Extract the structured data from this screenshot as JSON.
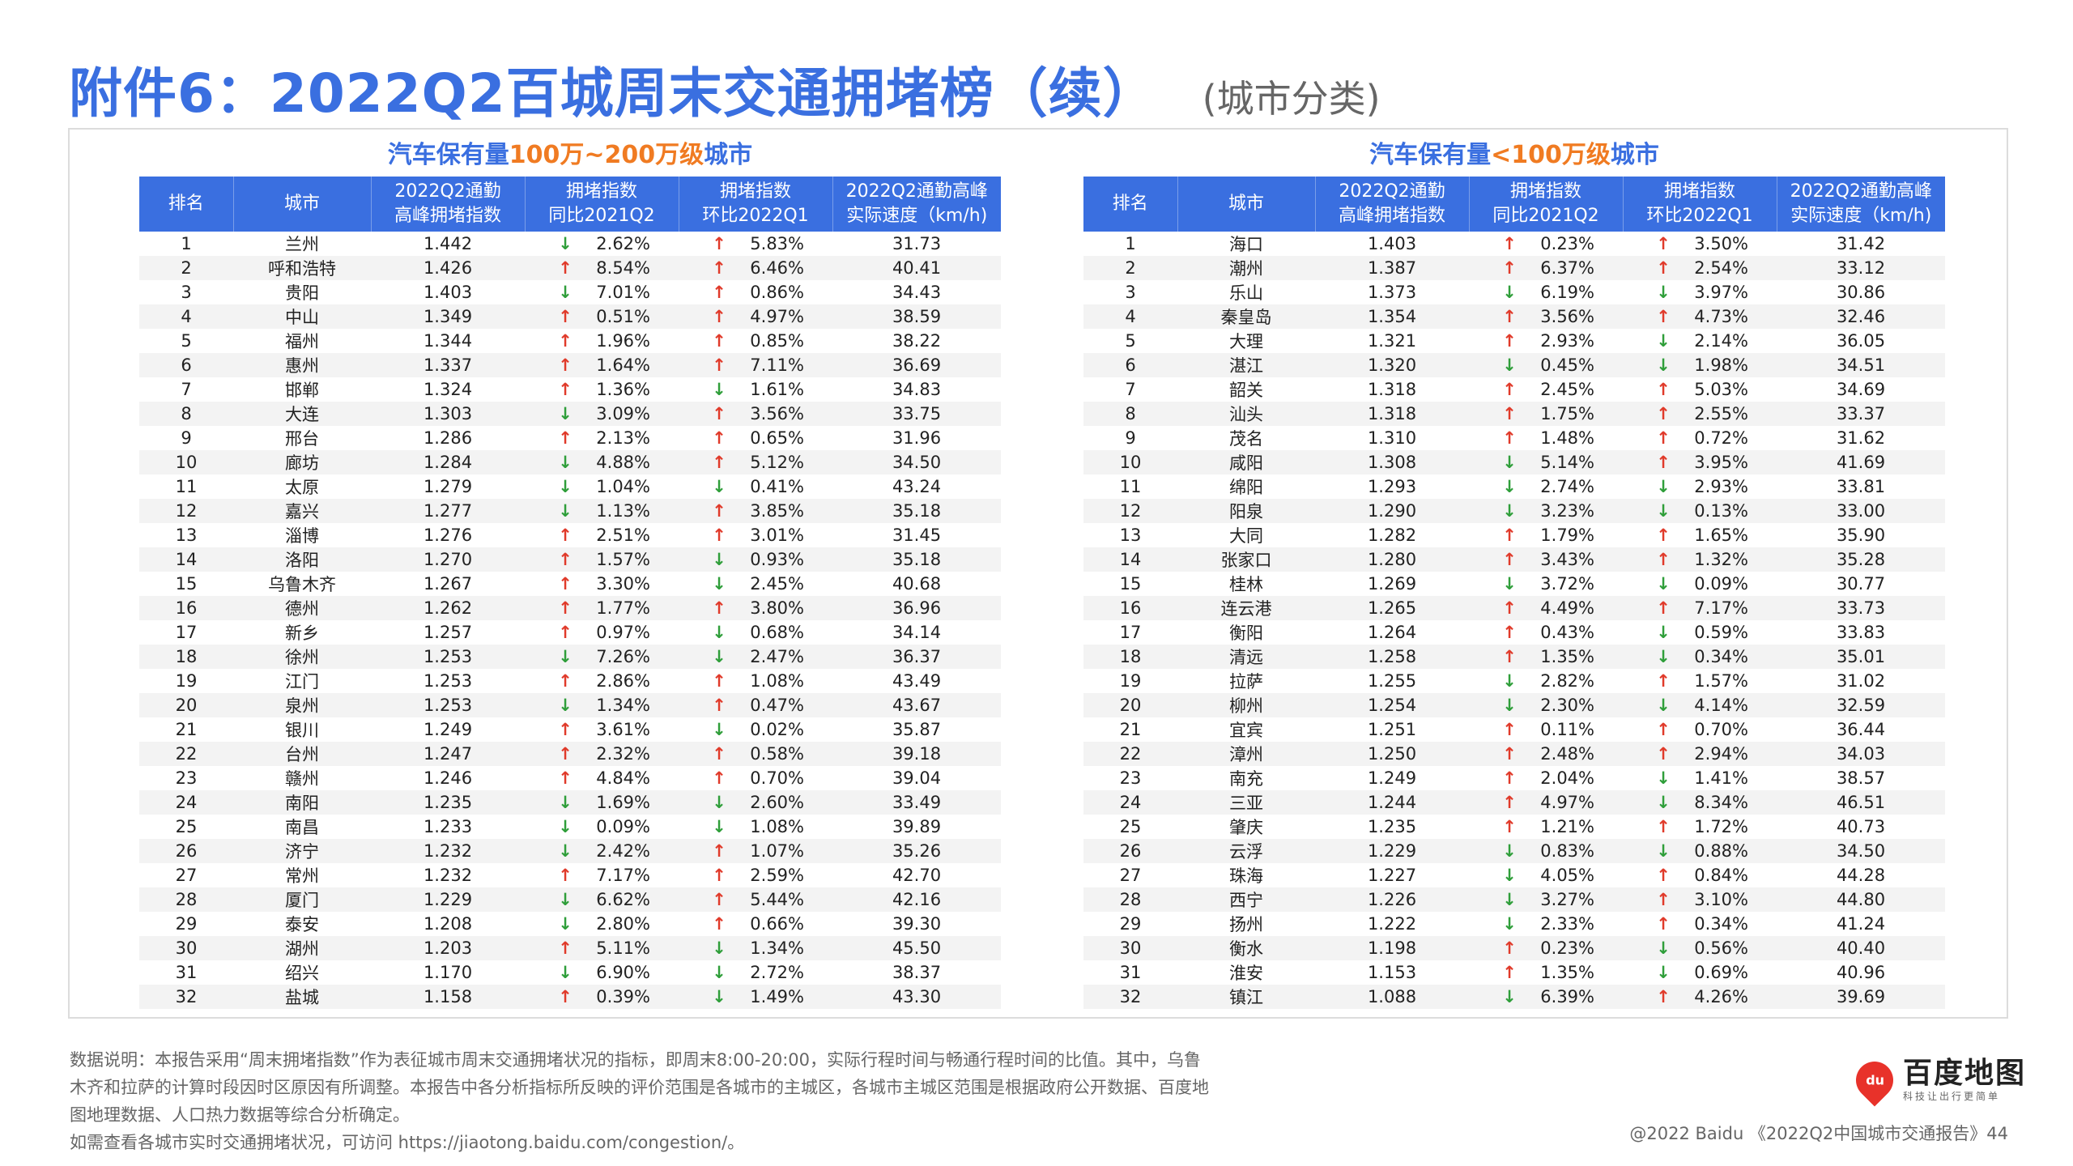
{
  "title": {
    "main": "附件6：2022Q2百城周末交通拥堵榜（续）",
    "sub": "(城市分类)"
  },
  "left": {
    "title_pre": "汽车保有量",
    "title_hl": "100万~200万级",
    "title_post": "城市",
    "headers": [
      "排名",
      "城市",
      "2022Q2通勤\n高峰拥堵指数",
      "拥堵指数\n同比2021Q2",
      "拥堵指数\n环比2022Q1",
      "2022Q2通勤高峰\n实际速度（km/h)"
    ],
    "rows": [
      [
        "1",
        "兰州",
        "1.442",
        "down",
        "2.62%",
        "up",
        "5.83%",
        "31.73"
      ],
      [
        "2",
        "呼和浩特",
        "1.426",
        "up",
        "8.54%",
        "up",
        "6.46%",
        "40.41"
      ],
      [
        "3",
        "贵阳",
        "1.403",
        "down",
        "7.01%",
        "up",
        "0.86%",
        "34.43"
      ],
      [
        "4",
        "中山",
        "1.349",
        "up",
        "0.51%",
        "up",
        "4.97%",
        "38.59"
      ],
      [
        "5",
        "福州",
        "1.344",
        "up",
        "1.96%",
        "up",
        "0.85%",
        "38.22"
      ],
      [
        "6",
        "惠州",
        "1.337",
        "up",
        "1.64%",
        "up",
        "7.11%",
        "36.69"
      ],
      [
        "7",
        "邯郸",
        "1.324",
        "up",
        "1.36%",
        "down",
        "1.61%",
        "34.83"
      ],
      [
        "8",
        "大连",
        "1.303",
        "down",
        "3.09%",
        "up",
        "3.56%",
        "33.75"
      ],
      [
        "9",
        "邢台",
        "1.286",
        "up",
        "2.13%",
        "up",
        "0.65%",
        "31.96"
      ],
      [
        "10",
        "廊坊",
        "1.284",
        "down",
        "4.88%",
        "up",
        "5.12%",
        "34.50"
      ],
      [
        "11",
        "太原",
        "1.279",
        "down",
        "1.04%",
        "down",
        "0.41%",
        "43.24"
      ],
      [
        "12",
        "嘉兴",
        "1.277",
        "down",
        "1.13%",
        "up",
        "3.85%",
        "35.18"
      ],
      [
        "13",
        "淄博",
        "1.276",
        "up",
        "2.51%",
        "up",
        "3.01%",
        "31.45"
      ],
      [
        "14",
        "洛阳",
        "1.270",
        "up",
        "1.57%",
        "down",
        "0.93%",
        "35.18"
      ],
      [
        "15",
        "乌鲁木齐",
        "1.267",
        "up",
        "3.30%",
        "down",
        "2.45%",
        "40.68"
      ],
      [
        "16",
        "德州",
        "1.262",
        "up",
        "1.77%",
        "up",
        "3.80%",
        "36.96"
      ],
      [
        "17",
        "新乡",
        "1.257",
        "up",
        "0.97%",
        "down",
        "0.68%",
        "34.14"
      ],
      [
        "18",
        "徐州",
        "1.253",
        "down",
        "7.26%",
        "down",
        "2.47%",
        "36.37"
      ],
      [
        "19",
        "江门",
        "1.253",
        "up",
        "2.86%",
        "up",
        "1.08%",
        "43.49"
      ],
      [
        "20",
        "泉州",
        "1.253",
        "down",
        "1.34%",
        "up",
        "0.47%",
        "43.67"
      ],
      [
        "21",
        "银川",
        "1.249",
        "up",
        "3.61%",
        "down",
        "0.02%",
        "35.87"
      ],
      [
        "22",
        "台州",
        "1.247",
        "up",
        "2.32%",
        "up",
        "0.58%",
        "39.18"
      ],
      [
        "23",
        "赣州",
        "1.246",
        "up",
        "4.84%",
        "up",
        "0.70%",
        "39.04"
      ],
      [
        "24",
        "南阳",
        "1.235",
        "down",
        "1.69%",
        "down",
        "2.60%",
        "33.49"
      ],
      [
        "25",
        "南昌",
        "1.233",
        "down",
        "0.09%",
        "down",
        "1.08%",
        "39.89"
      ],
      [
        "26",
        "济宁",
        "1.232",
        "down",
        "2.42%",
        "up",
        "1.07%",
        "35.26"
      ],
      [
        "27",
        "常州",
        "1.232",
        "up",
        "7.17%",
        "up",
        "2.59%",
        "42.70"
      ],
      [
        "28",
        "厦门",
        "1.229",
        "down",
        "6.62%",
        "up",
        "5.44%",
        "42.16"
      ],
      [
        "29",
        "泰安",
        "1.208",
        "down",
        "2.80%",
        "up",
        "0.66%",
        "39.30"
      ],
      [
        "30",
        "湖州",
        "1.203",
        "up",
        "5.11%",
        "down",
        "1.34%",
        "45.50"
      ],
      [
        "31",
        "绍兴",
        "1.170",
        "down",
        "6.90%",
        "down",
        "2.72%",
        "38.37"
      ],
      [
        "32",
        "盐城",
        "1.158",
        "up",
        "0.39%",
        "down",
        "1.49%",
        "43.30"
      ]
    ]
  },
  "right": {
    "title_pre": "汽车保有量",
    "title_hl": "<100万级",
    "title_post": "城市",
    "headers": [
      "排名",
      "城市",
      "2022Q2通勤\n高峰拥堵指数",
      "拥堵指数\n同比2021Q2",
      "拥堵指数\n环比2022Q1",
      "2022Q2通勤高峰\n实际速度（km/h)"
    ],
    "rows": [
      [
        "1",
        "海口",
        "1.403",
        "up",
        "0.23%",
        "up",
        "3.50%",
        "31.42"
      ],
      [
        "2",
        "潮州",
        "1.387",
        "up",
        "6.37%",
        "up",
        "2.54%",
        "33.12"
      ],
      [
        "3",
        "乐山",
        "1.373",
        "down",
        "6.19%",
        "down",
        "3.97%",
        "30.86"
      ],
      [
        "4",
        "秦皇岛",
        "1.354",
        "up",
        "3.56%",
        "up",
        "4.73%",
        "32.46"
      ],
      [
        "5",
        "大理",
        "1.321",
        "up",
        "2.93%",
        "down",
        "2.14%",
        "36.05"
      ],
      [
        "6",
        "湛江",
        "1.320",
        "down",
        "0.45%",
        "down",
        "1.98%",
        "34.51"
      ],
      [
        "7",
        "韶关",
        "1.318",
        "up",
        "2.45%",
        "up",
        "5.03%",
        "34.69"
      ],
      [
        "8",
        "汕头",
        "1.318",
        "up",
        "1.75%",
        "up",
        "2.55%",
        "33.37"
      ],
      [
        "9",
        "茂名",
        "1.310",
        "up",
        "1.48%",
        "up",
        "0.72%",
        "31.62"
      ],
      [
        "10",
        "咸阳",
        "1.308",
        "down",
        "5.14%",
        "up",
        "3.95%",
        "41.69"
      ],
      [
        "11",
        "绵阳",
        "1.293",
        "down",
        "2.74%",
        "down",
        "2.93%",
        "33.81"
      ],
      [
        "12",
        "阳泉",
        "1.290",
        "down",
        "3.23%",
        "down",
        "0.13%",
        "33.00"
      ],
      [
        "13",
        "大同",
        "1.282",
        "up",
        "1.79%",
        "up",
        "1.65%",
        "35.90"
      ],
      [
        "14",
        "张家口",
        "1.280",
        "up",
        "3.43%",
        "up",
        "1.32%",
        "35.28"
      ],
      [
        "15",
        "桂林",
        "1.269",
        "down",
        "3.72%",
        "down",
        "0.09%",
        "30.77"
      ],
      [
        "16",
        "连云港",
        "1.265",
        "up",
        "4.49%",
        "up",
        "7.17%",
        "33.73"
      ],
      [
        "17",
        "衡阳",
        "1.264",
        "up",
        "0.43%",
        "down",
        "0.59%",
        "33.83"
      ],
      [
        "18",
        "清远",
        "1.258",
        "up",
        "1.35%",
        "down",
        "0.34%",
        "35.01"
      ],
      [
        "19",
        "拉萨",
        "1.255",
        "down",
        "2.82%",
        "up",
        "1.57%",
        "31.02"
      ],
      [
        "20",
        "柳州",
        "1.254",
        "down",
        "2.30%",
        "down",
        "4.14%",
        "32.59"
      ],
      [
        "21",
        "宜宾",
        "1.251",
        "up",
        "0.11%",
        "up",
        "0.70%",
        "36.44"
      ],
      [
        "22",
        "漳州",
        "1.250",
        "up",
        "2.48%",
        "up",
        "2.94%",
        "34.03"
      ],
      [
        "23",
        "南充",
        "1.249",
        "up",
        "2.04%",
        "down",
        "1.41%",
        "38.57"
      ],
      [
        "24",
        "三亚",
        "1.244",
        "up",
        "4.97%",
        "down",
        "8.34%",
        "46.51"
      ],
      [
        "25",
        "肇庆",
        "1.235",
        "up",
        "1.21%",
        "up",
        "1.72%",
        "40.73"
      ],
      [
        "26",
        "云浮",
        "1.229",
        "down",
        "0.83%",
        "down",
        "0.88%",
        "34.50"
      ],
      [
        "27",
        "珠海",
        "1.227",
        "down",
        "4.05%",
        "up",
        "0.84%",
        "44.28"
      ],
      [
        "28",
        "西宁",
        "1.226",
        "down",
        "3.27%",
        "up",
        "3.10%",
        "44.80"
      ],
      [
        "29",
        "扬州",
        "1.222",
        "down",
        "2.33%",
        "up",
        "0.34%",
        "41.24"
      ],
      [
        "30",
        "衡水",
        "1.198",
        "up",
        "0.23%",
        "down",
        "0.56%",
        "40.40"
      ],
      [
        "31",
        "淮安",
        "1.153",
        "up",
        "1.35%",
        "down",
        "0.69%",
        "40.96"
      ],
      [
        "32",
        "镇江",
        "1.088",
        "down",
        "6.39%",
        "up",
        "4.26%",
        "39.69"
      ]
    ]
  },
  "note": {
    "line1": "数据说明：本报告采用“周末拥堵指数”作为表征城市周末交通拥堵状况的指标，即周末8:00-20:00，实际行程时间与畅通行程时间的比值。其中，乌鲁",
    "line2": "木齐和拉萨的计算时段因时区原因有所调整。本报告中各分析指标所反映的评价范围是各城市的主城区，各城市主城区范围是根据政府公开数据、百度地",
    "line3": "图地理数据、人口热力数据等综合分析确定。",
    "line4": "如需查看各城市实时交通拥堵状况，可访问 https://jiaotong.baidu.com/congestion/。"
  },
  "logo": {
    "badge": "du",
    "name": "百度地图",
    "slogan": "科技让出行更简单"
  },
  "footer": "@2022 Baidu 《2022Q2中国城市交通报告》44",
  "colors": {
    "accent": "#3a6fe0",
    "highlight": "#f07b22",
    "up": "#e03a2a",
    "down": "#2f9e3a"
  },
  "icons": {
    "up": "arrow-up-icon",
    "down": "arrow-down-icon"
  }
}
